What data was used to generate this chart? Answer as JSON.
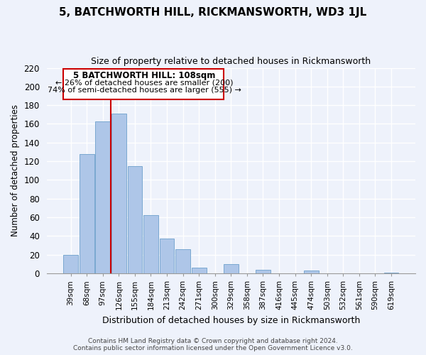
{
  "title": "5, BATCHWORTH HILL, RICKMANSWORTH, WD3 1JL",
  "subtitle": "Size of property relative to detached houses in Rickmansworth",
  "xlabel": "Distribution of detached houses by size in Rickmansworth",
  "ylabel": "Number of detached properties",
  "categories": [
    "39sqm",
    "68sqm",
    "97sqm",
    "126sqm",
    "155sqm",
    "184sqm",
    "213sqm",
    "242sqm",
    "271sqm",
    "300sqm",
    "329sqm",
    "358sqm",
    "387sqm",
    "416sqm",
    "445sqm",
    "474sqm",
    "503sqm",
    "532sqm",
    "561sqm",
    "590sqm",
    "619sqm"
  ],
  "values": [
    20,
    128,
    163,
    171,
    115,
    62,
    37,
    26,
    6,
    0,
    10,
    0,
    4,
    0,
    0,
    3,
    0,
    0,
    0,
    0,
    1
  ],
  "bar_color": "#aec6e8",
  "bar_edge_color": "#7aa8d0",
  "vline_color": "#cc0000",
  "vline_x_idx": 2,
  "annotation_title": "5 BATCHWORTH HILL: 108sqm",
  "annotation_line1": "← 26% of detached houses are smaller (200)",
  "annotation_line2": "74% of semi-detached houses are larger (555) →",
  "box_facecolor": "#ffffff",
  "box_edgecolor": "#cc0000",
  "ylim": [
    0,
    220
  ],
  "yticks": [
    0,
    20,
    40,
    60,
    80,
    100,
    120,
    140,
    160,
    180,
    200,
    220
  ],
  "footer_line1": "Contains HM Land Registry data © Crown copyright and database right 2024.",
  "footer_line2": "Contains public sector information licensed under the Open Government Licence v3.0.",
  "bg_color": "#eef2fb",
  "grid_color": "#ffffff",
  "title_fontsize": 11,
  "subtitle_fontsize": 9
}
